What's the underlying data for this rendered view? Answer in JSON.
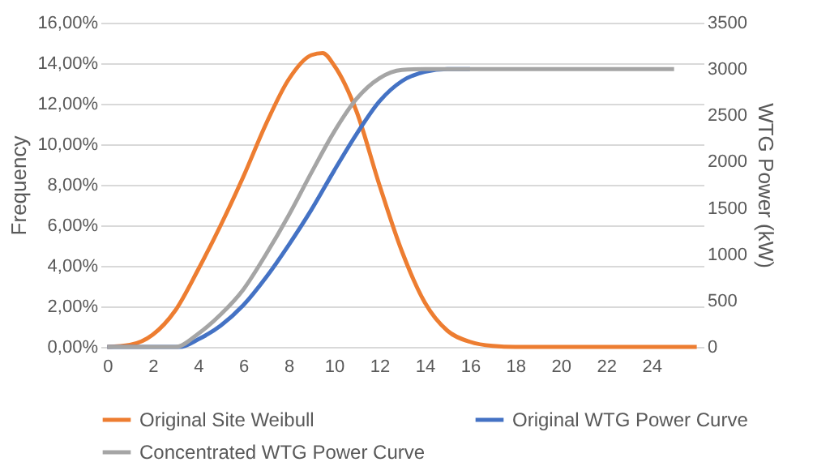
{
  "chart_data": {
    "type": "line",
    "xlabel": null,
    "ylabel": "Frequency",
    "y2label": "WTG Power (kW)",
    "xlim": [
      -0.3,
      26.3
    ],
    "xticks": [
      0,
      2,
      4,
      6,
      8,
      10,
      12,
      14,
      16,
      18,
      20,
      22,
      24
    ],
    "ylim": [
      0,
      16
    ],
    "yticks": [
      {
        "value": 0,
        "label": "0,00%"
      },
      {
        "value": 2,
        "label": "2,00%"
      },
      {
        "value": 4,
        "label": "4,00%"
      },
      {
        "value": 6,
        "label": "6,00%"
      },
      {
        "value": 8,
        "label": "8,00%"
      },
      {
        "value": 10,
        "label": "10,00%"
      },
      {
        "value": 12,
        "label": "12,00%"
      },
      {
        "value": 14,
        "label": "14,00%"
      },
      {
        "value": 16,
        "label": "16,00%"
      }
    ],
    "y2lim": [
      0,
      3500
    ],
    "y2ticks": [
      0,
      500,
      1000,
      1500,
      2000,
      2500,
      3000,
      3500
    ],
    "grid": "y",
    "legend": "bottom",
    "marker": "none",
    "line_style": "solid",
    "series": [
      {
        "name": "Original Site Weibull",
        "color": "#ed7d31",
        "x": [
          0,
          1,
          2,
          3,
          4,
          5,
          6,
          7,
          8,
          9,
          9.5,
          10,
          11,
          12,
          13,
          14,
          15,
          16,
          17,
          18,
          20,
          22,
          24,
          26
        ],
        "values": [
          0,
          0.1,
          0.6,
          1.8,
          3.8,
          6.0,
          8.4,
          11.0,
          13.2,
          14.4,
          14.5,
          13.9,
          11.6,
          8.0,
          4.7,
          2.2,
          0.8,
          0.25,
          0.05,
          0,
          0,
          0,
          0,
          0
        ]
      },
      {
        "name": "Original WTG Power Curve",
        "color": "#4472c4",
        "axis": "y2",
        "x": [
          0,
          3.2,
          4,
          5,
          6,
          7,
          8,
          9,
          10,
          11,
          12,
          13,
          14,
          15,
          16
        ],
        "values": [
          0,
          0,
          80,
          230,
          450,
          750,
          1100,
          1480,
          1900,
          2300,
          2650,
          2870,
          2970,
          3000,
          3000
        ]
      },
      {
        "name": "Concentrated WTG Power Curve",
        "color": "#a5a5a5",
        "axis": "y2",
        "x": [
          0,
          3,
          4,
          5,
          6,
          7,
          8,
          9,
          10,
          11,
          12,
          13,
          14,
          16,
          18,
          20,
          22,
          24,
          25
        ],
        "values": [
          0,
          0,
          140,
          350,
          620,
          1000,
          1420,
          1880,
          2320,
          2680,
          2900,
          2990,
          3000,
          3000,
          3000,
          3000,
          3000,
          3000,
          3000
        ]
      }
    ]
  }
}
